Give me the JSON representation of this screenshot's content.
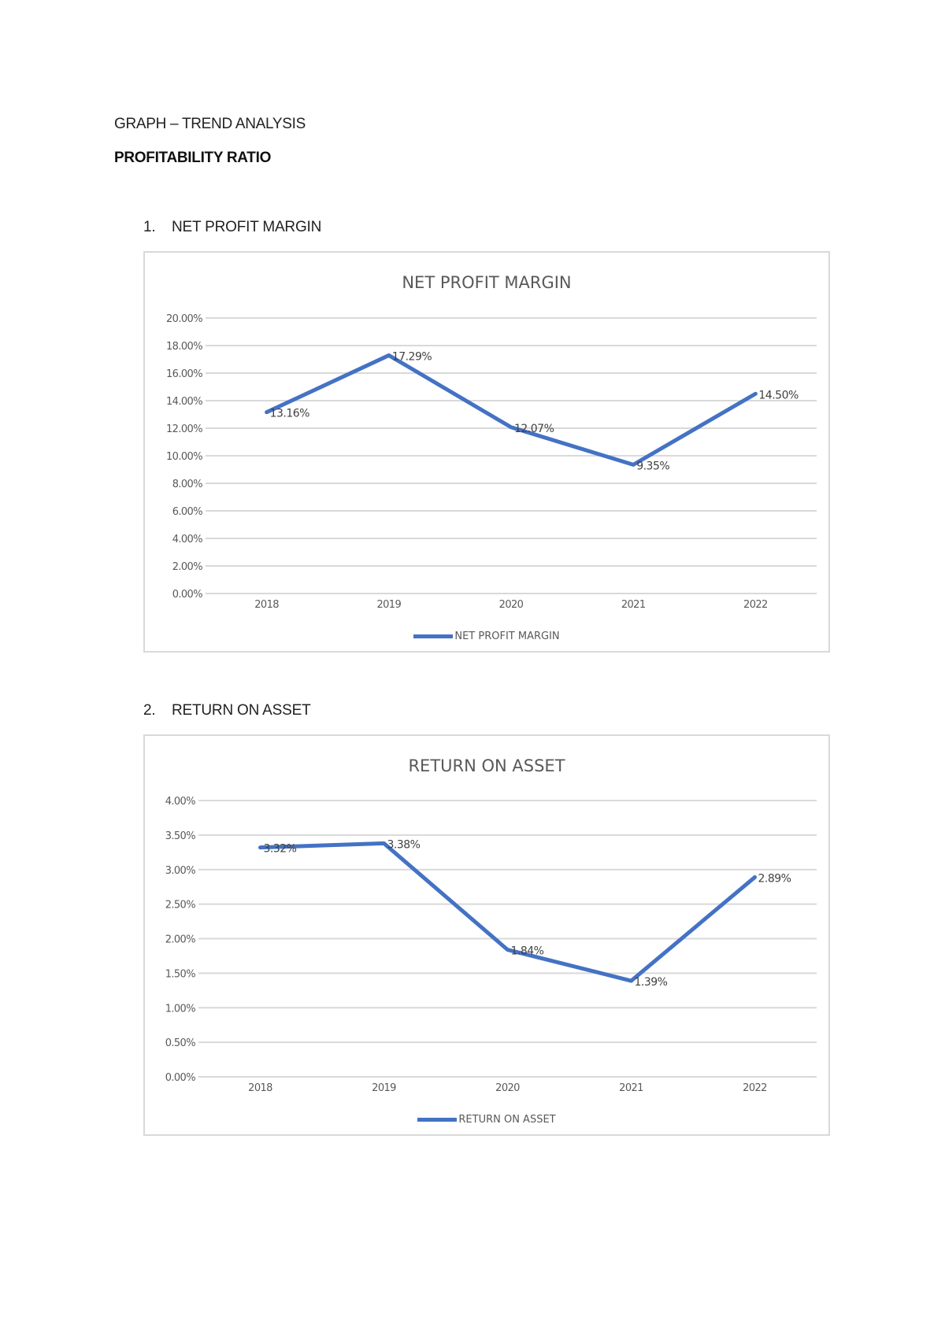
{
  "document": {
    "heading": "GRAPH – TREND ANALYSIS",
    "subheading": "PROFITABILITY RATIO",
    "sections": [
      {
        "number": "1.",
        "label": "NET PROFIT MARGIN"
      },
      {
        "number": "2.",
        "label": "RETURN ON ASSET"
      }
    ]
  },
  "colors": {
    "series": "#4472c4",
    "gridline": "#d9d9d9",
    "axis_text": "#595959",
    "border": "#d9d9d9"
  },
  "chart_data": [
    {
      "type": "line",
      "title": "NET PROFIT MARGIN",
      "xlabel": "",
      "ylabel": "",
      "categories": [
        "2018",
        "2019",
        "2020",
        "2021",
        "2022"
      ],
      "series": [
        {
          "name": "NET PROFIT MARGIN",
          "values": [
            13.16,
            17.29,
            12.07,
            9.35,
            14.5
          ],
          "labels": [
            "13.16%",
            "17.29%",
            "12.07%",
            "9.35%",
            "14.50%"
          ]
        }
      ],
      "ylim": [
        0,
        20
      ],
      "yticks": [
        "0.00%",
        "2.00%",
        "4.00%",
        "6.00%",
        "8.00%",
        "10.00%",
        "12.00%",
        "14.00%",
        "16.00%",
        "18.00%",
        "20.00%"
      ],
      "grid": true,
      "legend_position": "bottom"
    },
    {
      "type": "line",
      "title": "RETURN ON ASSET",
      "xlabel": "",
      "ylabel": "",
      "categories": [
        "2018",
        "2019",
        "2020",
        "2021",
        "2022"
      ],
      "series": [
        {
          "name": "RETURN ON ASSET",
          "values": [
            3.32,
            3.38,
            1.84,
            1.39,
            2.89
          ],
          "labels": [
            "3.32%",
            "3.38%",
            "1.84%",
            "1.39%",
            "2.89%"
          ]
        }
      ],
      "ylim": [
        0,
        4
      ],
      "yticks": [
        "0.00%",
        "0.50%",
        "1.00%",
        "1.50%",
        "2.00%",
        "2.50%",
        "3.00%",
        "3.50%",
        "4.00%"
      ],
      "grid": true,
      "legend_position": "bottom"
    }
  ]
}
